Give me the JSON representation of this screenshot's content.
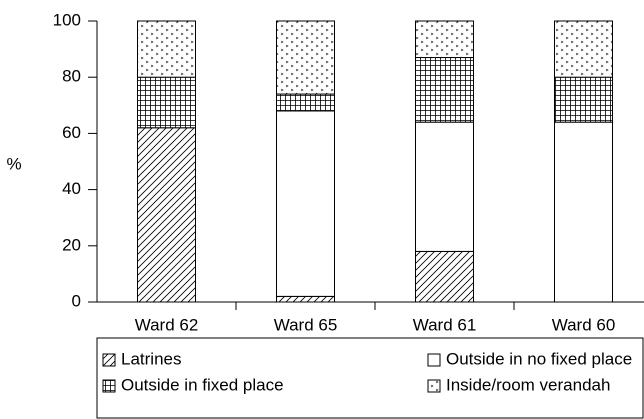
{
  "chart_data": {
    "type": "stacked_bar",
    "y_label": "%",
    "categories": [
      "Ward 62",
      "Ward 65",
      "Ward 61",
      "Ward 60"
    ],
    "series": [
      {
        "name": "Latrines",
        "color": "#ffffff",
        "pattern": "hatch",
        "values": [
          62,
          2,
          18,
          0
        ]
      },
      {
        "name": "Outside in no fixed place",
        "color": "#ffffff",
        "pattern": "none",
        "values": [
          0,
          66,
          46,
          64
        ]
      },
      {
        "name": "Outside in fixed place",
        "color": "#ffffff",
        "pattern": "grid",
        "values": [
          18,
          6,
          23,
          16
        ]
      },
      {
        "name": "Inside/room verandah",
        "color": "#ffffff",
        "pattern": "dots",
        "values": [
          20,
          26,
          13,
          20
        ]
      }
    ],
    "ylim": [
      0,
      100
    ],
    "yticks": [
      0,
      20,
      40,
      60,
      80,
      100
    ]
  }
}
